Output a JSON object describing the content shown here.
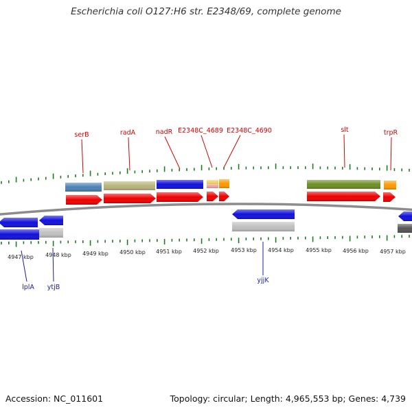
{
  "title": "Escherichia coli O127:H6 str. E2348/69, complete genome",
  "footer": {
    "accession": "Accession: NC_011601",
    "summary": "Topology: circular; Length: 4,965,553 bp; Genes: 4,739"
  },
  "kbp_labels": [
    "4947 kbp",
    "4948 kbp",
    "4949 kbp",
    "4950 kbp",
    "4951 kbp",
    "4952 kbp",
    "4953 kbp",
    "4954 kbp",
    "4955 kbp",
    "4956 kbp",
    "4957 kbp"
  ],
  "top_gene_labels": [
    "serB",
    "radA",
    "nadR",
    "E2348C_4689",
    "E2348C_4690",
    "slt",
    "trpR"
  ],
  "bottom_gene_labels": [
    "lplA",
    "ytjB",
    "yjjK"
  ],
  "colors": {
    "forward_cds": "#ee0000",
    "reverse_cds": "#1010dd",
    "backbone": "#888888",
    "ticks": "#1e7a1e",
    "steel_blue": "#4a82b4",
    "khaki": "#b8b47c",
    "olive": "#6b8e23",
    "orange": "#ff9900",
    "salmon": "#f0a0a0",
    "grey": "#c0c0c0"
  }
}
